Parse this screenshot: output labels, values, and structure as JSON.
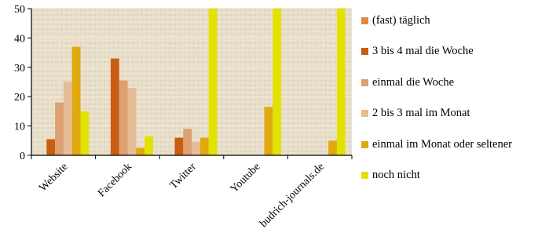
{
  "chart_data": {
    "type": "bar",
    "categories": [
      "Website",
      "Facebook",
      "Twitter",
      "Youtube",
      "budrich-journals.de"
    ],
    "series": [
      {
        "name": "(fast) täglich",
        "color": "#d98a4a",
        "values": [
          0,
          0,
          0,
          0,
          0
        ]
      },
      {
        "name": "3 bis 4 mal die Woche",
        "color": "#c95d12",
        "values": [
          5.5,
          33,
          6,
          0,
          0
        ]
      },
      {
        "name": "einmal die Woche",
        "color": "#dda070",
        "values": [
          18,
          25.5,
          9,
          0,
          0
        ]
      },
      {
        "name": "2 bis 3 mal im Monat",
        "color": "#e5bc95",
        "values": [
          25,
          23,
          4.5,
          0,
          0
        ]
      },
      {
        "name": "einmal im Monat oder seltener",
        "color": "#e0a90d",
        "values": [
          37,
          2.5,
          6,
          16.5,
          5
        ]
      },
      {
        "name": "noch nicht",
        "color": "#e2e200",
        "values": [
          15,
          6.5,
          50,
          50,
          50
        ]
      }
    ],
    "bar_order_note_removed": true,
    "ylim": [
      0,
      50
    ],
    "yticks": [
      "0",
      "10",
      "20",
      "30",
      "40",
      "50"
    ],
    "grid": true,
    "legend_position": "right"
  }
}
